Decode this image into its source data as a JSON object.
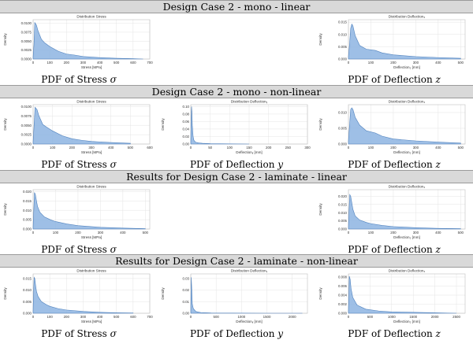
{
  "rows": [
    {
      "header": "Design Case 2 - mono - linear",
      "cells": [
        {
          "caption": "PDF of Stress ",
          "var": "σ"
        },
        {
          "caption": "",
          "var": ""
        },
        {
          "caption": "PDF of Deflection ",
          "var": "z"
        }
      ]
    },
    {
      "header": "Design Case 2 - mono - non-linear",
      "cells": [
        {
          "caption": "PDF of Stress ",
          "var": "σ"
        },
        {
          "caption": "PDF of Deflection ",
          "var": "y"
        },
        {
          "caption": "PDF of Deflection ",
          "var": "z"
        }
      ]
    },
    {
      "header": "Results for Design Case 2 - laminate - linear",
      "cells": [
        {
          "caption": "PDF of Stress ",
          "var": "σ"
        },
        {
          "caption": "",
          "var": ""
        },
        {
          "caption": "PDF of Deflection ",
          "var": "z"
        }
      ]
    },
    {
      "header": "Results for Design Case 2 - laminate - non-linear",
      "cells": [
        {
          "caption": "PDF of Stress ",
          "var": "σ"
        },
        {
          "caption": "PDF of Deflection ",
          "var": "y"
        },
        {
          "caption": "PDF of Deflection ",
          "var": "z"
        }
      ]
    }
  ],
  "colors": {
    "fill": "#8db4e2",
    "stroke": "#4f81bd",
    "grid": "#e4e4e4",
    "axis": "#bfbfbf",
    "header_bg": "#d9d9d9"
  },
  "chart_data": [
    {
      "id": "r1c1",
      "type": "area",
      "title": "Distribution Stress",
      "xlabel": "Stress [MPa]",
      "ylabel": "Density",
      "xlim": [
        0,
        700
      ],
      "ylim": [
        0,
        0.011
      ],
      "xticks": [
        0,
        100,
        200,
        300,
        400,
        500,
        600,
        700
      ],
      "yticks": [
        0,
        0.0025,
        0.005,
        0.0075,
        0.01
      ],
      "ytick_labels": [
        "0.0000",
        "0.0025",
        "0.0050",
        "0.0075",
        "0.0100"
      ],
      "grid": true,
      "x": [
        0,
        5,
        10,
        20,
        30,
        50,
        70,
        100,
        150,
        200,
        250,
        300,
        400,
        500,
        600,
        660
      ],
      "y": [
        0.0005,
        0.004,
        0.0102,
        0.0095,
        0.0078,
        0.0055,
        0.0045,
        0.0035,
        0.0022,
        0.0014,
        0.0011,
        0.0007,
        0.0004,
        0.0002,
        0.0001,
        0.0
      ]
    },
    {
      "id": "r1c3",
      "type": "area",
      "title": "Distribution Deflection₂",
      "xlabel": "Deflection₂ [mm]",
      "ylabel": "Density",
      "xlim": [
        0,
        520
      ],
      "ylim": [
        0,
        0.016
      ],
      "xticks": [
        0,
        100,
        200,
        300,
        400,
        500
      ],
      "yticks": [
        0,
        0.005,
        0.01,
        0.015
      ],
      "ytick_labels": [
        "0.000",
        "0.005",
        "0.010",
        "0.015"
      ],
      "grid": true,
      "x": [
        0,
        5,
        10,
        15,
        20,
        30,
        50,
        80,
        120,
        150,
        200,
        300,
        400,
        500
      ],
      "y": [
        0.001,
        0.006,
        0.0125,
        0.0142,
        0.0135,
        0.0095,
        0.0055,
        0.004,
        0.0035,
        0.0025,
        0.0017,
        0.001,
        0.0006,
        0.0003
      ]
    },
    {
      "id": "r2c1",
      "type": "area",
      "title": "Distribution Stress",
      "xlabel": "Stress [MPa]",
      "ylabel": "Density",
      "xlim": [
        0,
        600
      ],
      "ylim": [
        0,
        0.0105
      ],
      "xticks": [
        0,
        100,
        200,
        300,
        400,
        500,
        600
      ],
      "yticks": [
        0,
        0.0025,
        0.005,
        0.0075,
        0.01
      ],
      "ytick_labels": [
        "0.0000",
        "0.0025",
        "0.0050",
        "0.0075",
        "0.0100"
      ],
      "grid": true,
      "x": [
        0,
        5,
        10,
        20,
        30,
        50,
        70,
        100,
        150,
        200,
        250,
        300,
        400,
        500
      ],
      "y": [
        0.0005,
        0.005,
        0.0098,
        0.0092,
        0.0075,
        0.0052,
        0.0045,
        0.0035,
        0.0022,
        0.0014,
        0.001,
        0.0007,
        0.0004,
        0.0002
      ]
    },
    {
      "id": "r2c2",
      "type": "area",
      "title": "Distribution Deflectionᵧ",
      "xlabel": "Deflectionᵧ [mm]",
      "ylabel": "Density",
      "xlim": [
        0,
        300
      ],
      "ylim": [
        0,
        0.105
      ],
      "xticks": [
        0,
        50,
        100,
        150,
        200,
        250,
        300
      ],
      "yticks": [
        0,
        0.02,
        0.04,
        0.06,
        0.08,
        0.1
      ],
      "ytick_labels": [
        "0.00",
        "0.02",
        "0.04",
        "0.06",
        "0.08",
        "0.10"
      ],
      "grid": true,
      "x": [
        0,
        1,
        2,
        3,
        4,
        6,
        8,
        12,
        20,
        30,
        50,
        100,
        150
      ],
      "y": [
        0.005,
        0.06,
        0.1,
        0.085,
        0.05,
        0.02,
        0.01,
        0.005,
        0.003,
        0.002,
        0.001,
        0.0003,
        0.0
      ]
    },
    {
      "id": "r2c3",
      "type": "area",
      "title": "Distribution Deflection₂",
      "xlabel": "Deflection₂ [mm]",
      "ylabel": "Density",
      "xlim": [
        0,
        520
      ],
      "ylim": [
        0,
        0.0125
      ],
      "xticks": [
        0,
        100,
        200,
        300,
        400,
        500
      ],
      "yticks": [
        0,
        0.005,
        0.01
      ],
      "ytick_labels": [
        "0.000",
        "0.005",
        "0.010"
      ],
      "grid": true,
      "x": [
        0,
        5,
        10,
        15,
        20,
        30,
        50,
        80,
        120,
        150,
        200,
        300,
        400,
        500
      ],
      "y": [
        0.001,
        0.006,
        0.011,
        0.0115,
        0.011,
        0.0085,
        0.006,
        0.0042,
        0.0035,
        0.0025,
        0.0016,
        0.001,
        0.0006,
        0.0003
      ]
    },
    {
      "id": "r3c1",
      "type": "area",
      "title": "Distribution Stress",
      "xlabel": "Stress [MPa]",
      "ylabel": "Density",
      "xlim": [
        0,
        520
      ],
      "ylim": [
        0,
        0.021
      ],
      "xticks": [
        0,
        100,
        200,
        300,
        400,
        500
      ],
      "yticks": [
        0,
        0.005,
        0.01,
        0.015,
        0.02
      ],
      "ytick_labels": [
        "0.000",
        "0.005",
        "0.010",
        "0.015",
        "0.020"
      ],
      "grid": true,
      "x": [
        0,
        3,
        6,
        10,
        15,
        20,
        30,
        50,
        80,
        100,
        150,
        200,
        300,
        400,
        500
      ],
      "y": [
        0.001,
        0.01,
        0.0195,
        0.0185,
        0.015,
        0.012,
        0.009,
        0.0065,
        0.0048,
        0.004,
        0.0027,
        0.0018,
        0.0009,
        0.0005,
        0.0002
      ]
    },
    {
      "id": "r3c3",
      "type": "area",
      "title": "Distribution Deflection₂",
      "xlabel": "Deflection₂ [mm]",
      "ylabel": "Density",
      "xlim": [
        0,
        520
      ],
      "ylim": [
        0,
        0.024
      ],
      "xticks": [
        0,
        100,
        200,
        300,
        400,
        500
      ],
      "yticks": [
        0,
        0.005,
        0.01,
        0.015,
        0.02
      ],
      "ytick_labels": [
        "0.000",
        "0.005",
        "0.010",
        "0.015",
        "0.020"
      ],
      "grid": true,
      "x": [
        0,
        3,
        6,
        10,
        15,
        20,
        30,
        50,
        80,
        100,
        150,
        200,
        300,
        400,
        500
      ],
      "y": [
        0.001,
        0.012,
        0.021,
        0.02,
        0.016,
        0.012,
        0.008,
        0.0055,
        0.004,
        0.0033,
        0.0022,
        0.0015,
        0.0008,
        0.0004,
        0.0002
      ]
    },
    {
      "id": "r4c1",
      "type": "area",
      "title": "Distribution Stress",
      "xlabel": "Stress [MPa]",
      "ylabel": "Density",
      "xlim": [
        0,
        700
      ],
      "ylim": [
        0,
        0.017
      ],
      "xticks": [
        0,
        100,
        200,
        300,
        400,
        500,
        600,
        700
      ],
      "yticks": [
        0,
        0.005,
        0.01,
        0.015
      ],
      "ytick_labels": [
        "0.000",
        "0.005",
        "0.010",
        "0.015"
      ],
      "grid": true,
      "x": [
        0,
        3,
        6,
        10,
        15,
        20,
        30,
        50,
        80,
        100,
        150,
        200,
        300,
        400,
        500,
        600
      ],
      "y": [
        0.001,
        0.009,
        0.0155,
        0.015,
        0.012,
        0.0095,
        0.0072,
        0.005,
        0.0037,
        0.003,
        0.002,
        0.0014,
        0.0008,
        0.0004,
        0.0002,
        0.0001
      ]
    },
    {
      "id": "r4c2",
      "type": "area",
      "title": "Distribution Deflectionᵧ",
      "xlabel": "Deflectionᵧ [mm]",
      "ylabel": "Density",
      "xlim": [
        0,
        2300
      ],
      "ylim": [
        0,
        0.034
      ],
      "xticks": [
        0,
        500,
        1000,
        1500,
        2000
      ],
      "yticks": [
        0,
        0.01,
        0.02,
        0.03
      ],
      "ytick_labels": [
        "0.00",
        "0.01",
        "0.02",
        "0.03"
      ],
      "grid": true,
      "x": [
        0,
        5,
        10,
        20,
        30,
        50,
        100,
        200,
        400,
        800,
        1500,
        2200
      ],
      "y": [
        0.002,
        0.02,
        0.031,
        0.02,
        0.008,
        0.004,
        0.0015,
        0.0006,
        0.0002,
        0.0001,
        0.0,
        0.0
      ]
    },
    {
      "id": "r4c3",
      "type": "area",
      "title": "Distribution Deflection₂",
      "xlabel": "Deflection₂ [mm]",
      "ylabel": "Density",
      "xlim": [
        0,
        2700
      ],
      "ylim": [
        0,
        0.0087
      ],
      "xticks": [
        0,
        500,
        1000,
        1500,
        2000,
        2500
      ],
      "yticks": [
        0,
        0.002,
        0.004,
        0.006,
        0.008
      ],
      "ytick_labels": [
        "0.000",
        "0.002",
        "0.004",
        "0.006",
        "0.008"
      ],
      "grid": true,
      "x": [
        0,
        10,
        20,
        40,
        60,
        100,
        200,
        400,
        700,
        1000,
        1500,
        2000,
        2500
      ],
      "y": [
        0.0005,
        0.004,
        0.0082,
        0.0075,
        0.0055,
        0.0035,
        0.0018,
        0.0009,
        0.0005,
        0.0003,
        0.0002,
        0.0001,
        0.0
      ]
    }
  ]
}
